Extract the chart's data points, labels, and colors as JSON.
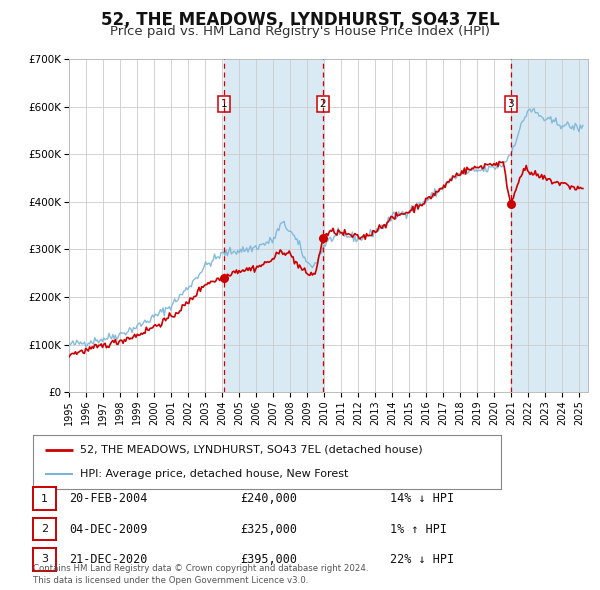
{
  "title": "52, THE MEADOWS, LYNDHURST, SO43 7EL",
  "subtitle": "Price paid vs. HM Land Registry's House Price Index (HPI)",
  "ylim": [
    0,
    700000
  ],
  "xlim_start": 1995.0,
  "xlim_end": 2025.5,
  "yticks": [
    0,
    100000,
    200000,
    300000,
    400000,
    500000,
    600000,
    700000
  ],
  "ytick_labels": [
    "£0",
    "£100K",
    "£200K",
    "£300K",
    "£400K",
    "£500K",
    "£600K",
    "£700K"
  ],
  "xticks": [
    1995,
    1996,
    1997,
    1998,
    1999,
    2000,
    2001,
    2002,
    2003,
    2004,
    2005,
    2006,
    2007,
    2008,
    2009,
    2010,
    2011,
    2012,
    2013,
    2014,
    2015,
    2016,
    2017,
    2018,
    2019,
    2020,
    2021,
    2022,
    2023,
    2024,
    2025
  ],
  "hpi_color": "#7ab4d8",
  "price_color": "#cc0000",
  "sale_dot_color": "#cc0000",
  "vline_color": "#cc0000",
  "shade_color": "#daeaf5",
  "background_color": "#ffffff",
  "grid_color": "#cccccc",
  "title_fontsize": 12,
  "subtitle_fontsize": 9.5,
  "transactions": [
    {
      "num": 1,
      "date": 2004.12,
      "price": 240000,
      "label": "20-FEB-2004",
      "price_str": "£240,000",
      "pct": "14%",
      "dir": "↓"
    },
    {
      "num": 2,
      "date": 2009.92,
      "price": 325000,
      "label": "04-DEC-2009",
      "price_str": "£325,000",
      "pct": "1%",
      "dir": "↑"
    },
    {
      "num": 3,
      "date": 2020.97,
      "price": 395000,
      "label": "21-DEC-2020",
      "price_str": "£395,000",
      "pct": "22%",
      "dir": "↓"
    }
  ],
  "legend_label_price": "52, THE MEADOWS, LYNDHURST, SO43 7EL (detached house)",
  "legend_label_hpi": "HPI: Average price, detached house, New Forest",
  "footer_lines": [
    "Contains HM Land Registry data © Crown copyright and database right 2024.",
    "This data is licensed under the Open Government Licence v3.0."
  ]
}
